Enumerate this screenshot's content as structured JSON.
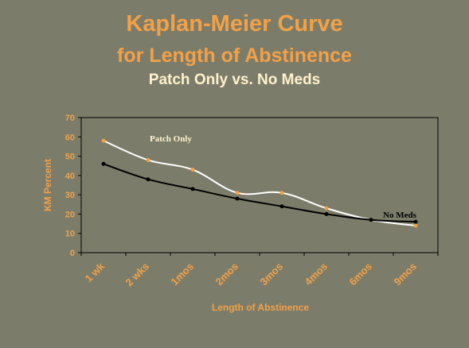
{
  "chart_data": {
    "type": "line",
    "title": "Kaplan-Meier Curve",
    "subtitle": "for Length of Abstinence",
    "comparison": "Patch Only  vs. No Meds",
    "xlabel": "Length of Abstinence",
    "ylabel": "KM Percent",
    "categories": [
      "1 wk",
      "2 wks",
      "1mos",
      "2mos",
      "3mos",
      "4mos",
      "6mos",
      "9mos"
    ],
    "ylim": [
      0,
      70
    ],
    "yticks": [
      0,
      10,
      20,
      30,
      40,
      50,
      60,
      70
    ],
    "grid": false,
    "series": [
      {
        "name": "Patch Only",
        "values": [
          58,
          48,
          43,
          31,
          31,
          23,
          17,
          14
        ],
        "color": "#ffffff",
        "marker_color": "#f4a046"
      },
      {
        "name": "No Meds",
        "values": [
          46,
          38,
          33,
          28,
          24,
          20,
          17,
          16
        ],
        "color": "#000000",
        "marker_color": "#000000"
      }
    ],
    "annotations": [
      {
        "text": "Patch Only",
        "series": "Patch Only"
      },
      {
        "text": "No Meds",
        "series": "No Meds"
      }
    ],
    "colors": {
      "background": "#7b7d6a",
      "plot_background": "#7b7d6a",
      "accent": "#f4a046"
    }
  }
}
